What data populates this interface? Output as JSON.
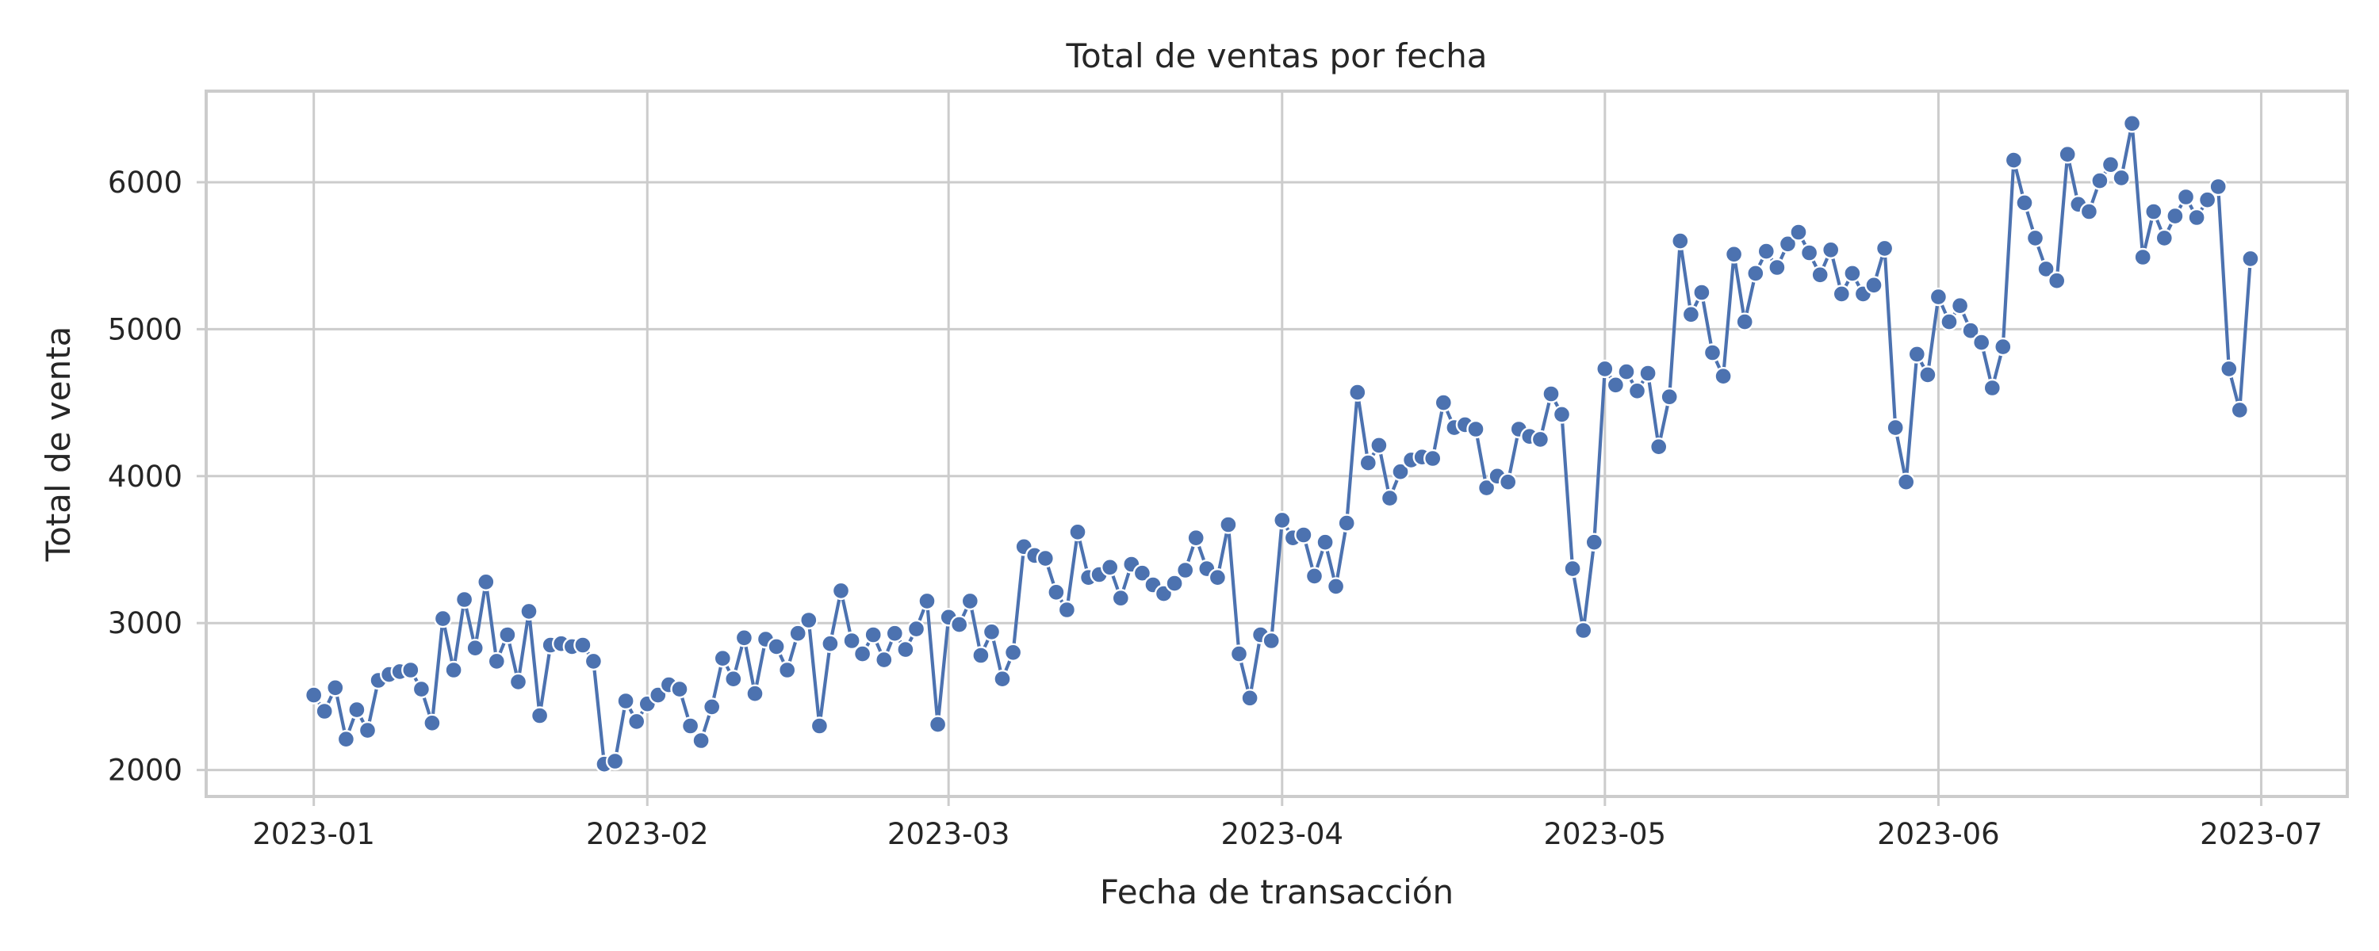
{
  "chart_data": {
    "type": "line",
    "title": "Total de ventas por fecha",
    "xlabel": "Fecha de transacción",
    "ylabel": "Total de venta",
    "x_ticks": [
      "2023-01",
      "2023-02",
      "2023-03",
      "2023-04",
      "2023-05",
      "2023-06",
      "2023-07"
    ],
    "y_ticks": [
      2000,
      3000,
      4000,
      5000,
      6000
    ],
    "xlim": [
      "2022-12-22",
      "2023-07-09"
    ],
    "ylim": [
      1820,
      6620
    ],
    "grid": true,
    "legend": "none",
    "colors": {
      "series": "#4c72b0",
      "grid": "#cccccc",
      "text": "#262626"
    },
    "series": [
      {
        "x": [
          "2023-01-01",
          "2023-01-02",
          "2023-01-03",
          "2023-01-04",
          "2023-01-05",
          "2023-01-06",
          "2023-01-07",
          "2023-01-08",
          "2023-01-09",
          "2023-01-10",
          "2023-01-11",
          "2023-01-12",
          "2023-01-13",
          "2023-01-14",
          "2023-01-15",
          "2023-01-16",
          "2023-01-17",
          "2023-01-18",
          "2023-01-19",
          "2023-01-20",
          "2023-01-21",
          "2023-01-22",
          "2023-01-23",
          "2023-01-24",
          "2023-01-25",
          "2023-01-26",
          "2023-01-27",
          "2023-01-28",
          "2023-01-29",
          "2023-01-30",
          "2023-01-31",
          "2023-02-01",
          "2023-02-02",
          "2023-02-03",
          "2023-02-04",
          "2023-02-05",
          "2023-02-06",
          "2023-02-07",
          "2023-02-08",
          "2023-02-09",
          "2023-02-10",
          "2023-02-11",
          "2023-02-12",
          "2023-02-13",
          "2023-02-14",
          "2023-02-15",
          "2023-02-16",
          "2023-02-17",
          "2023-02-18",
          "2023-02-19",
          "2023-02-20",
          "2023-02-21",
          "2023-02-22",
          "2023-02-23",
          "2023-02-24",
          "2023-02-25",
          "2023-02-26",
          "2023-02-27",
          "2023-02-28",
          "2023-03-01",
          "2023-03-02",
          "2023-03-03",
          "2023-03-04",
          "2023-03-05",
          "2023-03-06",
          "2023-03-07",
          "2023-03-08",
          "2023-03-09",
          "2023-03-10",
          "2023-03-11",
          "2023-03-12",
          "2023-03-13",
          "2023-03-14",
          "2023-03-15",
          "2023-03-16",
          "2023-03-17",
          "2023-03-18",
          "2023-03-19",
          "2023-03-20",
          "2023-03-21",
          "2023-03-22",
          "2023-03-23",
          "2023-03-24",
          "2023-03-25",
          "2023-03-26",
          "2023-03-27",
          "2023-03-28",
          "2023-03-29",
          "2023-03-30",
          "2023-03-31",
          "2023-04-01",
          "2023-04-02",
          "2023-04-03",
          "2023-04-04",
          "2023-04-05",
          "2023-04-06",
          "2023-04-07",
          "2023-04-08",
          "2023-04-09",
          "2023-04-10",
          "2023-04-11",
          "2023-04-12",
          "2023-04-13",
          "2023-04-14",
          "2023-04-15",
          "2023-04-16",
          "2023-04-17",
          "2023-04-18",
          "2023-04-19",
          "2023-04-20",
          "2023-04-21",
          "2023-04-22",
          "2023-04-23",
          "2023-04-24",
          "2023-04-25",
          "2023-04-26",
          "2023-04-27",
          "2023-04-28",
          "2023-04-29",
          "2023-04-30",
          "2023-05-01",
          "2023-05-02",
          "2023-05-03",
          "2023-05-04",
          "2023-05-05",
          "2023-05-06",
          "2023-05-07",
          "2023-05-08",
          "2023-05-09",
          "2023-05-10",
          "2023-05-11",
          "2023-05-12",
          "2023-05-13",
          "2023-05-14",
          "2023-05-15",
          "2023-05-16",
          "2023-05-17",
          "2023-05-18",
          "2023-05-19",
          "2023-05-20",
          "2023-05-21",
          "2023-05-22",
          "2023-05-23",
          "2023-05-24",
          "2023-05-25",
          "2023-05-26",
          "2023-05-27",
          "2023-05-28",
          "2023-05-29",
          "2023-05-30",
          "2023-05-31",
          "2023-06-01",
          "2023-06-02",
          "2023-06-03",
          "2023-06-04",
          "2023-06-05",
          "2023-06-06",
          "2023-06-07",
          "2023-06-08",
          "2023-06-09",
          "2023-06-10",
          "2023-06-11",
          "2023-06-12",
          "2023-06-13",
          "2023-06-14",
          "2023-06-15",
          "2023-06-16",
          "2023-06-17",
          "2023-06-18",
          "2023-06-19",
          "2023-06-20",
          "2023-06-21",
          "2023-06-22",
          "2023-06-23",
          "2023-06-24",
          "2023-06-25",
          "2023-06-26",
          "2023-06-27",
          "2023-06-28",
          "2023-06-29",
          "2023-06-30"
        ],
        "values": [
          2510,
          2400,
          2560,
          2210,
          2410,
          2270,
          2610,
          2650,
          2670,
          2680,
          2550,
          2320,
          3030,
          2680,
          3160,
          2830,
          3280,
          2740,
          2920,
          2600,
          3080,
          2370,
          2850,
          2860,
          2840,
          2850,
          2740,
          2040,
          2060,
          2470,
          2330,
          2450,
          2510,
          2580,
          2550,
          2300,
          2200,
          2430,
          2760,
          2620,
          2900,
          2520,
          2890,
          2840,
          2680,
          2930,
          3020,
          2300,
          2860,
          3220,
          2880,
          2790,
          2920,
          2750,
          2930,
          2820,
          2960,
          3150,
          2310,
          3040,
          2990,
          3150,
          2780,
          2940,
          2620,
          2800,
          3520,
          3460,
          3440,
          3210,
          3090,
          3620,
          3310,
          3330,
          3380,
          3170,
          3400,
          3340,
          3260,
          3200,
          3270,
          3360,
          3580,
          3370,
          3310,
          3670,
          2790,
          2490,
          2920,
          2880,
          3700,
          3580,
          3600,
          3320,
          3550,
          3250,
          3680,
          4570,
          4090,
          4210,
          3850,
          4030,
          4110,
          4130,
          4120,
          4500,
          4330,
          4350,
          4320,
          3920,
          4000,
          3960,
          4320,
          4270,
          4250,
          4560,
          4420,
          3370,
          2950,
          3550,
          4730,
          4620,
          4710,
          4580,
          4700,
          4200,
          4540,
          5600,
          5100,
          5250,
          4840,
          4680,
          5510,
          5050,
          5380,
          5530,
          5420,
          5580,
          5660,
          5520,
          5370,
          5540,
          5240,
          5380,
          5240,
          5300,
          5550,
          4330,
          3960,
          4830,
          4690,
          5220,
          5050,
          5160,
          4990,
          4910,
          4600,
          4880,
          6150,
          5860,
          5620,
          5410,
          5330,
          6190,
          5850,
          5800,
          6010,
          6120,
          6030,
          6400,
          5490,
          5800,
          5620,
          5770,
          5900,
          5760,
          5880,
          5970,
          4730,
          4450,
          5480
        ]
      }
    ]
  }
}
